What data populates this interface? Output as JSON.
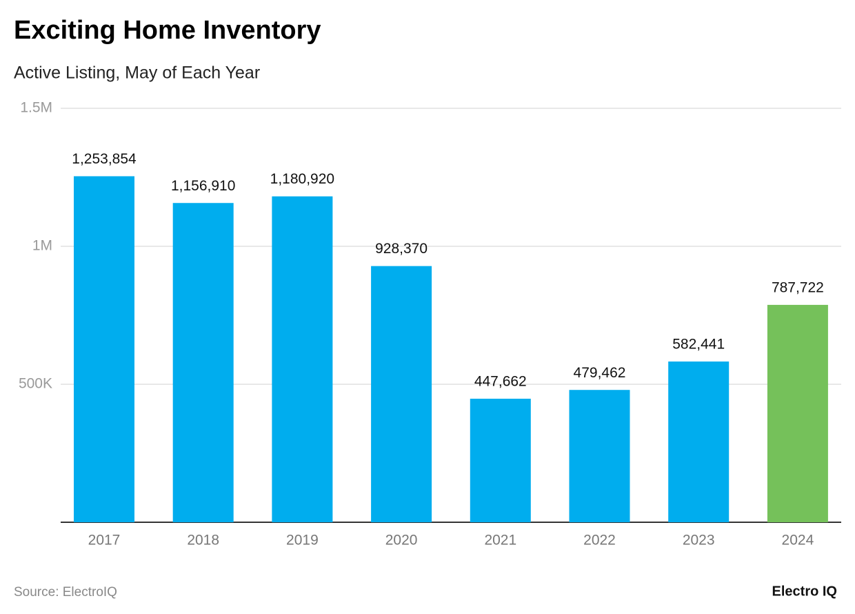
{
  "chart_data": {
    "type": "bar",
    "title": "Exciting Home Inventory",
    "subtitle": "Active Listing, May of Each Year",
    "categories": [
      "2017",
      "2018",
      "2019",
      "2020",
      "2021",
      "2022",
      "2023",
      "2024"
    ],
    "values": [
      1253854,
      1156910,
      1180920,
      928370,
      447662,
      479462,
      582441,
      787722
    ],
    "value_labels": [
      "1,253,854",
      "1,156,910",
      "1,180,920",
      "928,370",
      "447,662",
      "479,462",
      "582,441",
      "787,722"
    ],
    "colors": [
      "#00adee",
      "#00adee",
      "#00adee",
      "#00adee",
      "#00adee",
      "#00adee",
      "#00adee",
      "#75c15a"
    ],
    "ylim": [
      0,
      1500000
    ],
    "yticks": [
      {
        "value": 500000,
        "label": "500K"
      },
      {
        "value": 1000000,
        "label": "1M"
      },
      {
        "value": 1500000,
        "label": "1.5M"
      }
    ],
    "grid": true,
    "source": "Source: ElectroIQ",
    "brand": "Electro IQ"
  }
}
